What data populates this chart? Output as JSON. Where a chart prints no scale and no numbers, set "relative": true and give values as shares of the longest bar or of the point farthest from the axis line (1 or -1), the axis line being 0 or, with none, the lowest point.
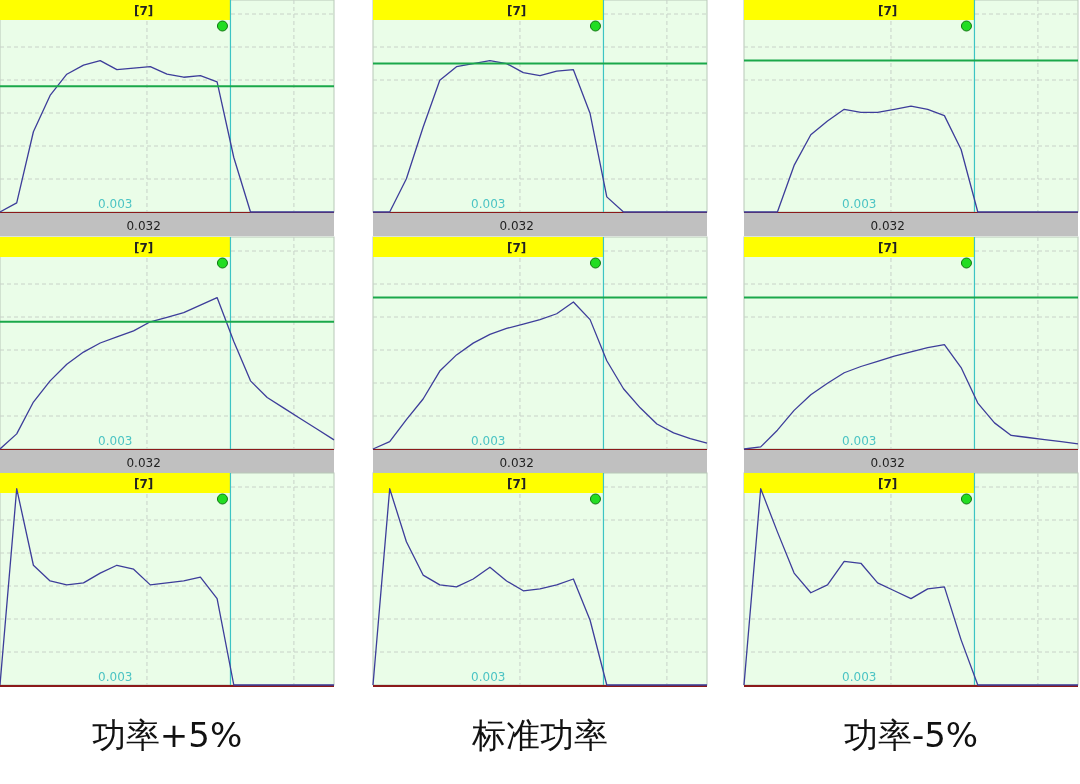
{
  "chart_data": [
    {
      "type": "line",
      "relative": true,
      "grid": true,
      "tick_labels": false,
      "annotations": [
        "[7]",
        "0.003",
        "0.032"
      ],
      "categories": [
        null,
        null,
        null,
        null,
        null,
        null,
        null,
        null,
        null,
        null,
        null,
        null,
        null,
        null,
        null,
        null,
        null,
        null,
        null,
        null,
        null
      ],
      "series": [
        {
          "color": "#3d3d9a",
          "values": [
            0,
            0.06,
            0.53,
            0.77,
            0.91,
            0.97,
            1,
            0.94,
            0.95,
            0.96,
            0.91,
            0.89,
            0.9,
            0.86,
            0.36,
            0,
            0,
            0,
            0,
            0,
            0
          ]
        }
      ],
      "ref_lines": [
        {
          "axis": "y",
          "value": 0.83,
          "color": "#1aa84a"
        }
      ]
    },
    {
      "type": "line",
      "relative": true,
      "grid": true,
      "tick_labels": false,
      "annotations": [
        "[7]",
        "0.003",
        "0.032"
      ],
      "categories": [
        null,
        null,
        null,
        null,
        null,
        null,
        null,
        null,
        null,
        null,
        null,
        null,
        null,
        null,
        null,
        null,
        null,
        null,
        null,
        null,
        null
      ],
      "series": [
        {
          "color": "#3d3d9a",
          "values": [
            0,
            0,
            0.22,
            0.56,
            0.87,
            0.96,
            0.98,
            1,
            0.98,
            0.92,
            0.9,
            0.93,
            0.94,
            0.65,
            0.1,
            0,
            0,
            0,
            0,
            0,
            0
          ]
        }
      ],
      "ref_lines": [
        {
          "axis": "y",
          "value": 0.98,
          "color": "#1aa84a"
        }
      ]
    },
    {
      "type": "line",
      "relative": true,
      "grid": true,
      "tick_labels": false,
      "annotations": [
        "[7]",
        "0.003",
        "0.032"
      ],
      "categories": [
        null,
        null,
        null,
        null,
        null,
        null,
        null,
        null,
        null,
        null,
        null,
        null,
        null,
        null,
        null,
        null,
        null,
        null,
        null,
        null,
        null
      ],
      "series": [
        {
          "color": "#3d3d9a",
          "values": [
            0,
            0,
            0,
            0.44,
            0.73,
            0.86,
            0.97,
            0.94,
            0.94,
            0.97,
            1,
            0.97,
            0.91,
            0.59,
            0,
            0,
            0,
            0,
            0,
            0,
            0
          ]
        }
      ],
      "ref_lines": [
        {
          "axis": "y",
          "value": 1.43,
          "color": "#1aa84a"
        }
      ]
    },
    {
      "type": "line",
      "relative": true,
      "grid": true,
      "tick_labels": false,
      "annotations": [
        "[7]",
        "0.003",
        "0.032"
      ],
      "categories": [
        null,
        null,
        null,
        null,
        null,
        null,
        null,
        null,
        null,
        null,
        null,
        null,
        null,
        null,
        null,
        null,
        null,
        null,
        null,
        null,
        null
      ],
      "series": [
        {
          "color": "#3d3d9a",
          "values": [
            0,
            0.1,
            0.31,
            0.45,
            0.56,
            0.64,
            0.7,
            0.74,
            0.78,
            0.84,
            0.87,
            0.9,
            0.95,
            1,
            0.71,
            0.45,
            0.34,
            0.27,
            0.2,
            0.13,
            0.06
          ]
        }
      ],
      "ref_lines": [
        {
          "axis": "y",
          "value": 0.84,
          "color": "#1aa84a"
        }
      ]
    },
    {
      "type": "line",
      "relative": true,
      "grid": true,
      "tick_labels": false,
      "annotations": [
        "[7]",
        "0.003",
        "0.032"
      ],
      "categories": [
        null,
        null,
        null,
        null,
        null,
        null,
        null,
        null,
        null,
        null,
        null,
        null,
        null,
        null,
        null,
        null,
        null,
        null,
        null,
        null,
        null
      ],
      "series": [
        {
          "color": "#3d3d9a",
          "values": [
            0,
            0.05,
            0.2,
            0.34,
            0.53,
            0.64,
            0.72,
            0.78,
            0.82,
            0.85,
            0.88,
            0.92,
            1,
            0.88,
            0.6,
            0.41,
            0.28,
            0.17,
            0.11,
            0.07,
            0.04
          ]
        }
      ],
      "ref_lines": [
        {
          "axis": "y",
          "value": 1.03,
          "color": "#1aa84a"
        }
      ]
    },
    {
      "type": "line",
      "relative": true,
      "grid": true,
      "tick_labels": false,
      "annotations": [
        "[7]",
        "0.003",
        "0.032"
      ],
      "categories": [
        null,
        null,
        null,
        null,
        null,
        null,
        null,
        null,
        null,
        null,
        null,
        null,
        null,
        null,
        null,
        null,
        null,
        null,
        null,
        null,
        null
      ],
      "series": [
        {
          "color": "#3d3d9a",
          "values": [
            0,
            0.02,
            0.18,
            0.37,
            0.52,
            0.63,
            0.73,
            0.79,
            0.84,
            0.89,
            0.93,
            0.97,
            1,
            0.78,
            0.44,
            0.25,
            0.13,
            0.11,
            0.09,
            0.07,
            0.05
          ]
        }
      ],
      "ref_lines": [
        {
          "axis": "y",
          "value": 1.45,
          "color": "#1aa84a"
        }
      ]
    },
    {
      "type": "line",
      "relative": true,
      "grid": true,
      "tick_labels": false,
      "annotations": [
        "[7]",
        "0.003"
      ],
      "xlabel": "功率+5%",
      "categories": [
        null,
        null,
        null,
        null,
        null,
        null,
        null,
        null,
        null,
        null,
        null,
        null,
        null,
        null,
        null,
        null,
        null,
        null,
        null,
        null,
        null
      ],
      "series": [
        {
          "color": "#3d3d9a",
          "values": [
            0,
            1,
            0.61,
            0.53,
            0.51,
            0.52,
            0.57,
            0.61,
            0.59,
            0.51,
            0.52,
            0.53,
            0.55,
            0.44,
            0,
            0,
            0,
            0,
            0,
            0,
            0
          ]
        }
      ]
    },
    {
      "type": "line",
      "relative": true,
      "grid": true,
      "tick_labels": false,
      "annotations": [
        "[7]",
        "0.003"
      ],
      "xlabel": "标准功率",
      "categories": [
        null,
        null,
        null,
        null,
        null,
        null,
        null,
        null,
        null,
        null,
        null,
        null,
        null,
        null,
        null,
        null,
        null,
        null,
        null,
        null,
        null
      ],
      "series": [
        {
          "color": "#3d3d9a",
          "values": [
            0,
            1,
            0.73,
            0.56,
            0.51,
            0.5,
            0.54,
            0.6,
            0.53,
            0.48,
            0.49,
            0.51,
            0.54,
            0.33,
            0,
            0,
            0,
            0,
            0,
            0,
            0
          ]
        }
      ]
    },
    {
      "type": "line",
      "relative": true,
      "grid": true,
      "tick_labels": false,
      "annotations": [
        "[7]",
        "0.003"
      ],
      "xlabel": "功率-5%",
      "categories": [
        null,
        null,
        null,
        null,
        null,
        null,
        null,
        null,
        null,
        null,
        null,
        null,
        null,
        null,
        null,
        null,
        null,
        null,
        null,
        null,
        null
      ],
      "series": [
        {
          "color": "#3d3d9a",
          "values": [
            0,
            1,
            0.78,
            0.57,
            0.47,
            0.51,
            0.63,
            0.62,
            0.52,
            0.48,
            0.44,
            0.49,
            0.5,
            0.23,
            0,
            0,
            0,
            0,
            0,
            0,
            0
          ]
        }
      ]
    }
  ]
}
